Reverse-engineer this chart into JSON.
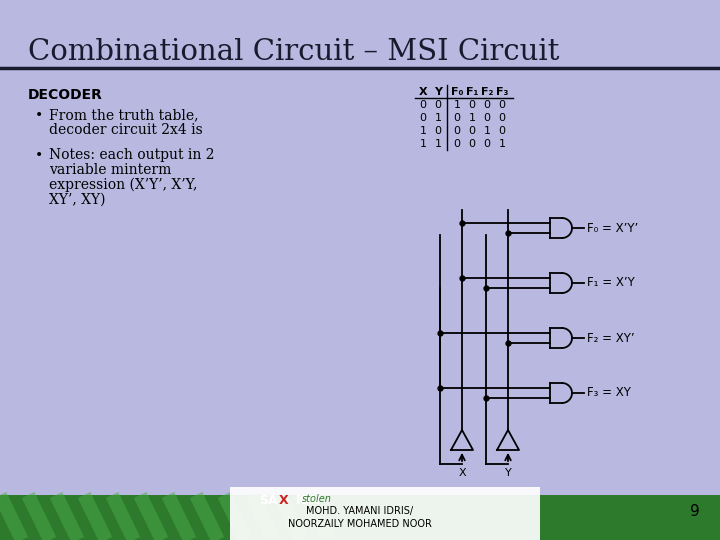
{
  "title": "Combinational Circuit – MSI Circuit",
  "bg_color": "#b8b8e0",
  "title_bg": "#b8b8e0",
  "footer_bg": "#2d7a2d",
  "footer_text1": "MOHD. YAMANI IDRIS/",
  "footer_text2": "NOORZAILY MOHAMED NOOR",
  "page_num": "9",
  "decoder_label": "DECODER",
  "bullet1_line1": "From the truth table,",
  "bullet1_line2": "decoder circuit 2x4 is",
  "bullet2_line1": "Notes: each output in 2",
  "bullet2_line2": "variable minterm",
  "bullet2_line3": "expression (X’Y’, X’Y,",
  "bullet2_line4": "XY’, XY)",
  "truth_rows": [
    [
      "0",
      "0",
      "1",
      "0",
      "0",
      "0"
    ],
    [
      "0",
      "1",
      "0",
      "1",
      "0",
      "0"
    ],
    [
      "1",
      "0",
      "0",
      "0",
      "1",
      "0"
    ],
    [
      "1",
      "1",
      "0",
      "0",
      "0",
      "1"
    ]
  ],
  "gate_labels": [
    "F₀ = X’Y’",
    "F₁ = X’Y",
    "F₂ = XY’",
    "F₃ = XY"
  ]
}
